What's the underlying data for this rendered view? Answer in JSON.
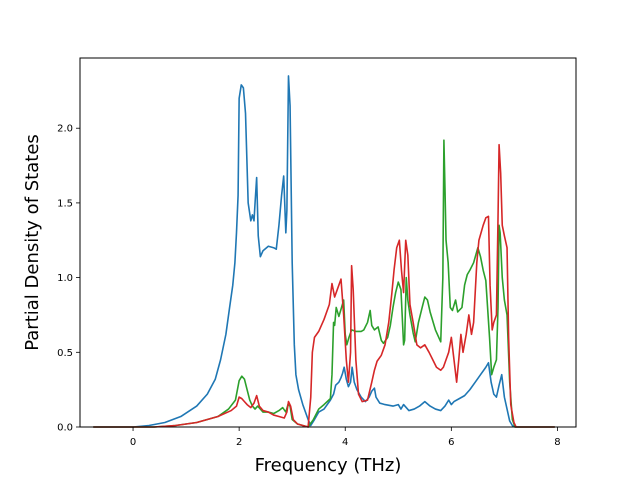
{
  "chart_data": {
    "type": "line",
    "title": "",
    "xlabel": "Frequency (THz)",
    "ylabel": "Partial Density of States",
    "xlim": [
      -1.0,
      8.35
    ],
    "ylim": [
      0.0,
      2.47
    ],
    "xticks": [
      0,
      2,
      4,
      6,
      8
    ],
    "xtick_labels": [
      "0",
      "2",
      "4",
      "6",
      "8"
    ],
    "yticks": [
      0.0,
      0.5,
      1.0,
      1.5,
      2.0
    ],
    "ytick_labels": [
      "0.0",
      "0.5",
      "1.0",
      "1.5",
      "2.0"
    ],
    "grid": false,
    "legend": "none",
    "series": [
      {
        "color": "#1f77b4",
        "points": [
          [
            -0.75,
            0
          ],
          [
            0,
            0
          ],
          [
            0.3,
            0.01
          ],
          [
            0.6,
            0.03
          ],
          [
            0.9,
            0.07
          ],
          [
            1.2,
            0.14
          ],
          [
            1.4,
            0.22
          ],
          [
            1.55,
            0.32
          ],
          [
            1.65,
            0.45
          ],
          [
            1.75,
            0.62
          ],
          [
            1.82,
            0.8
          ],
          [
            1.88,
            0.95
          ],
          [
            1.92,
            1.1
          ],
          [
            1.95,
            1.3
          ],
          [
            1.98,
            1.55
          ],
          [
            2.0,
            2.2
          ],
          [
            2.04,
            2.29
          ],
          [
            2.08,
            2.27
          ],
          [
            2.12,
            2.1
          ],
          [
            2.17,
            1.5
          ],
          [
            2.22,
            1.38
          ],
          [
            2.25,
            1.42
          ],
          [
            2.28,
            1.38
          ],
          [
            2.3,
            1.5
          ],
          [
            2.33,
            1.67
          ],
          [
            2.36,
            1.28
          ],
          [
            2.4,
            1.14
          ],
          [
            2.45,
            1.18
          ],
          [
            2.55,
            1.21
          ],
          [
            2.65,
            1.2
          ],
          [
            2.7,
            1.19
          ],
          [
            2.75,
            1.35
          ],
          [
            2.8,
            1.55
          ],
          [
            2.84,
            1.68
          ],
          [
            2.88,
            1.3
          ],
          [
            2.9,
            1.45
          ],
          [
            2.93,
            2.35
          ],
          [
            2.96,
            2.15
          ],
          [
            3.0,
            1.1
          ],
          [
            3.04,
            0.55
          ],
          [
            3.07,
            0.35
          ],
          [
            3.12,
            0.25
          ],
          [
            3.2,
            0.15
          ],
          [
            3.3,
            0.05
          ],
          [
            3.35,
            0.01
          ],
          [
            3.42,
            0.05
          ],
          [
            3.5,
            0.1
          ],
          [
            3.6,
            0.12
          ],
          [
            3.72,
            0.18
          ],
          [
            3.78,
            0.22
          ],
          [
            3.82,
            0.28
          ],
          [
            3.88,
            0.3
          ],
          [
            3.92,
            0.33
          ],
          [
            3.95,
            0.36
          ],
          [
            3.98,
            0.4
          ],
          [
            4.02,
            0.32
          ],
          [
            4.06,
            0.27
          ],
          [
            4.1,
            0.3
          ],
          [
            4.13,
            0.4
          ],
          [
            4.17,
            0.3
          ],
          [
            4.22,
            0.25
          ],
          [
            4.3,
            0.2
          ],
          [
            4.38,
            0.17
          ],
          [
            4.45,
            0.2
          ],
          [
            4.5,
            0.24
          ],
          [
            4.55,
            0.26
          ],
          [
            4.58,
            0.2
          ],
          [
            4.65,
            0.16
          ],
          [
            4.75,
            0.15
          ],
          [
            4.9,
            0.14
          ],
          [
            5.0,
            0.15
          ],
          [
            5.05,
            0.12
          ],
          [
            5.1,
            0.15
          ],
          [
            5.2,
            0.11
          ],
          [
            5.3,
            0.12
          ],
          [
            5.4,
            0.14
          ],
          [
            5.5,
            0.17
          ],
          [
            5.6,
            0.14
          ],
          [
            5.7,
            0.12
          ],
          [
            5.8,
            0.11
          ],
          [
            5.88,
            0.14
          ],
          [
            5.95,
            0.18
          ],
          [
            6.0,
            0.15
          ],
          [
            6.05,
            0.17
          ],
          [
            6.15,
            0.19
          ],
          [
            6.25,
            0.21
          ],
          [
            6.35,
            0.25
          ],
          [
            6.45,
            0.3
          ],
          [
            6.55,
            0.35
          ],
          [
            6.65,
            0.4
          ],
          [
            6.7,
            0.43
          ],
          [
            6.75,
            0.3
          ],
          [
            6.8,
            0.22
          ],
          [
            6.85,
            0.2
          ],
          [
            6.9,
            0.28
          ],
          [
            6.95,
            0.35
          ],
          [
            7.0,
            0.2
          ],
          [
            7.05,
            0.12
          ],
          [
            7.1,
            0.04
          ],
          [
            7.15,
            0.01
          ],
          [
            7.2,
            0
          ],
          [
            7.95,
            0
          ]
        ]
      },
      {
        "color": "#2ca02c",
        "points": [
          [
            -0.75,
            0
          ],
          [
            0.4,
            0
          ],
          [
            0.8,
            0.01
          ],
          [
            1.2,
            0.03
          ],
          [
            1.6,
            0.07
          ],
          [
            1.8,
            0.12
          ],
          [
            1.93,
            0.18
          ],
          [
            2.0,
            0.31
          ],
          [
            2.05,
            0.34
          ],
          [
            2.1,
            0.32
          ],
          [
            2.15,
            0.25
          ],
          [
            2.2,
            0.18
          ],
          [
            2.25,
            0.14
          ],
          [
            2.3,
            0.12
          ],
          [
            2.35,
            0.14
          ],
          [
            2.4,
            0.12
          ],
          [
            2.45,
            0.1
          ],
          [
            2.55,
            0.1
          ],
          [
            2.65,
            0.09
          ],
          [
            2.75,
            0.11
          ],
          [
            2.82,
            0.13
          ],
          [
            2.88,
            0.1
          ],
          [
            2.92,
            0.15
          ],
          [
            2.96,
            0.14
          ],
          [
            3.0,
            0.05
          ],
          [
            3.1,
            0.02
          ],
          [
            3.2,
            0.01
          ],
          [
            3.3,
            0.0
          ],
          [
            3.4,
            0.05
          ],
          [
            3.5,
            0.12
          ],
          [
            3.6,
            0.15
          ],
          [
            3.72,
            0.19
          ],
          [
            3.75,
            0.35
          ],
          [
            3.78,
            0.7
          ],
          [
            3.8,
            0.68
          ],
          [
            3.83,
            0.8
          ],
          [
            3.88,
            0.74
          ],
          [
            3.93,
            0.8
          ],
          [
            3.97,
            0.85
          ],
          [
            4.0,
            0.62
          ],
          [
            4.03,
            0.55
          ],
          [
            4.07,
            0.6
          ],
          [
            4.12,
            0.65
          ],
          [
            4.2,
            0.64
          ],
          [
            4.3,
            0.64
          ],
          [
            4.35,
            0.65
          ],
          [
            4.42,
            0.7
          ],
          [
            4.47,
            0.78
          ],
          [
            4.5,
            0.68
          ],
          [
            4.55,
            0.65
          ],
          [
            4.62,
            0.67
          ],
          [
            4.68,
            0.58
          ],
          [
            4.72,
            0.56
          ],
          [
            4.8,
            0.6
          ],
          [
            4.85,
            0.68
          ],
          [
            4.9,
            0.8
          ],
          [
            4.95,
            0.9
          ],
          [
            5.0,
            0.97
          ],
          [
            5.05,
            0.92
          ],
          [
            5.1,
            0.55
          ],
          [
            5.12,
            0.58
          ],
          [
            5.15,
            1.0
          ],
          [
            5.18,
            0.85
          ],
          [
            5.22,
            0.75
          ],
          [
            5.28,
            0.63
          ],
          [
            5.32,
            0.57
          ],
          [
            5.38,
            0.7
          ],
          [
            5.45,
            0.8
          ],
          [
            5.5,
            0.87
          ],
          [
            5.55,
            0.85
          ],
          [
            5.6,
            0.77
          ],
          [
            5.7,
            0.65
          ],
          [
            5.8,
            0.57
          ],
          [
            5.84,
            1.0
          ],
          [
            5.86,
            1.92
          ],
          [
            5.88,
            1.6
          ],
          [
            5.9,
            1.25
          ],
          [
            5.94,
            1.1
          ],
          [
            5.98,
            0.8
          ],
          [
            6.02,
            0.78
          ],
          [
            6.08,
            0.85
          ],
          [
            6.12,
            0.77
          ],
          [
            6.2,
            0.8
          ],
          [
            6.25,
            0.95
          ],
          [
            6.3,
            1.02
          ],
          [
            6.35,
            1.05
          ],
          [
            6.42,
            1.1
          ],
          [
            6.5,
            1.2
          ],
          [
            6.55,
            1.14
          ],
          [
            6.6,
            1.05
          ],
          [
            6.65,
            0.98
          ],
          [
            6.72,
            0.6
          ],
          [
            6.76,
            0.35
          ],
          [
            6.8,
            0.4
          ],
          [
            6.85,
            0.45
          ],
          [
            6.88,
            0.8
          ],
          [
            6.9,
            1.35
          ],
          [
            6.92,
            1.3
          ],
          [
            6.96,
            1.0
          ],
          [
            7.0,
            0.85
          ],
          [
            7.05,
            0.75
          ],
          [
            7.1,
            0.3
          ],
          [
            7.15,
            0.05
          ],
          [
            7.2,
            0
          ],
          [
            7.95,
            0
          ]
        ]
      },
      {
        "color": "#d62728",
        "points": [
          [
            -0.75,
            0
          ],
          [
            0.4,
            0
          ],
          [
            0.8,
            0.01
          ],
          [
            1.2,
            0.03
          ],
          [
            1.6,
            0.07
          ],
          [
            1.85,
            0.11
          ],
          [
            1.95,
            0.14
          ],
          [
            2.0,
            0.2
          ],
          [
            2.05,
            0.19
          ],
          [
            2.1,
            0.17
          ],
          [
            2.15,
            0.15
          ],
          [
            2.22,
            0.13
          ],
          [
            2.28,
            0.16
          ],
          [
            2.33,
            0.21
          ],
          [
            2.38,
            0.14
          ],
          [
            2.45,
            0.11
          ],
          [
            2.55,
            0.1
          ],
          [
            2.65,
            0.08
          ],
          [
            2.75,
            0.07
          ],
          [
            2.85,
            0.06
          ],
          [
            2.9,
            0.1
          ],
          [
            2.93,
            0.17
          ],
          [
            2.97,
            0.14
          ],
          [
            3.02,
            0.05
          ],
          [
            3.1,
            0.02
          ],
          [
            3.2,
            0.01
          ],
          [
            3.3,
            0.0
          ],
          [
            3.35,
            0.2
          ],
          [
            3.38,
            0.5
          ],
          [
            3.42,
            0.6
          ],
          [
            3.5,
            0.64
          ],
          [
            3.6,
            0.72
          ],
          [
            3.7,
            0.82
          ],
          [
            3.75,
            0.96
          ],
          [
            3.8,
            0.87
          ],
          [
            3.85,
            0.92
          ],
          [
            3.92,
            0.99
          ],
          [
            3.97,
            0.75
          ],
          [
            4.02,
            0.45
          ],
          [
            4.06,
            0.3
          ],
          [
            4.1,
            0.5
          ],
          [
            4.12,
            1.08
          ],
          [
            4.15,
            0.92
          ],
          [
            4.2,
            0.45
          ],
          [
            4.25,
            0.22
          ],
          [
            4.32,
            0.17
          ],
          [
            4.42,
            0.18
          ],
          [
            4.5,
            0.3
          ],
          [
            4.55,
            0.38
          ],
          [
            4.6,
            0.44
          ],
          [
            4.68,
            0.48
          ],
          [
            4.75,
            0.55
          ],
          [
            4.82,
            0.7
          ],
          [
            4.88,
            0.9
          ],
          [
            4.92,
            1.05
          ],
          [
            4.97,
            1.2
          ],
          [
            5.02,
            1.25
          ],
          [
            5.06,
            1.05
          ],
          [
            5.1,
            0.9
          ],
          [
            5.14,
            1.25
          ],
          [
            5.18,
            1.15
          ],
          [
            5.22,
            0.82
          ],
          [
            5.28,
            0.7
          ],
          [
            5.35,
            0.55
          ],
          [
            5.42,
            0.53
          ],
          [
            5.5,
            0.55
          ],
          [
            5.58,
            0.5
          ],
          [
            5.65,
            0.45
          ],
          [
            5.72,
            0.4
          ],
          [
            5.8,
            0.38
          ],
          [
            5.85,
            0.4
          ],
          [
            5.9,
            0.45
          ],
          [
            5.95,
            0.5
          ],
          [
            6.0,
            0.6
          ],
          [
            6.05,
            0.45
          ],
          [
            6.1,
            0.3
          ],
          [
            6.14,
            0.45
          ],
          [
            6.18,
            0.62
          ],
          [
            6.22,
            0.5
          ],
          [
            6.28,
            0.62
          ],
          [
            6.33,
            0.75
          ],
          [
            6.38,
            0.62
          ],
          [
            6.42,
            0.7
          ],
          [
            6.48,
            1.1
          ],
          [
            6.52,
            1.25
          ],
          [
            6.6,
            1.35
          ],
          [
            6.65,
            1.4
          ],
          [
            6.7,
            1.41
          ],
          [
            6.73,
            0.95
          ],
          [
            6.77,
            0.65
          ],
          [
            6.8,
            0.7
          ],
          [
            6.85,
            0.75
          ],
          [
            6.88,
            1.4
          ],
          [
            6.9,
            1.89
          ],
          [
            6.93,
            1.7
          ],
          [
            6.96,
            1.35
          ],
          [
            7.0,
            1.28
          ],
          [
            7.05,
            1.2
          ],
          [
            7.08,
            0.6
          ],
          [
            7.12,
            0.15
          ],
          [
            7.18,
            0.03
          ],
          [
            7.22,
            0
          ],
          [
            7.95,
            0
          ]
        ]
      }
    ]
  }
}
